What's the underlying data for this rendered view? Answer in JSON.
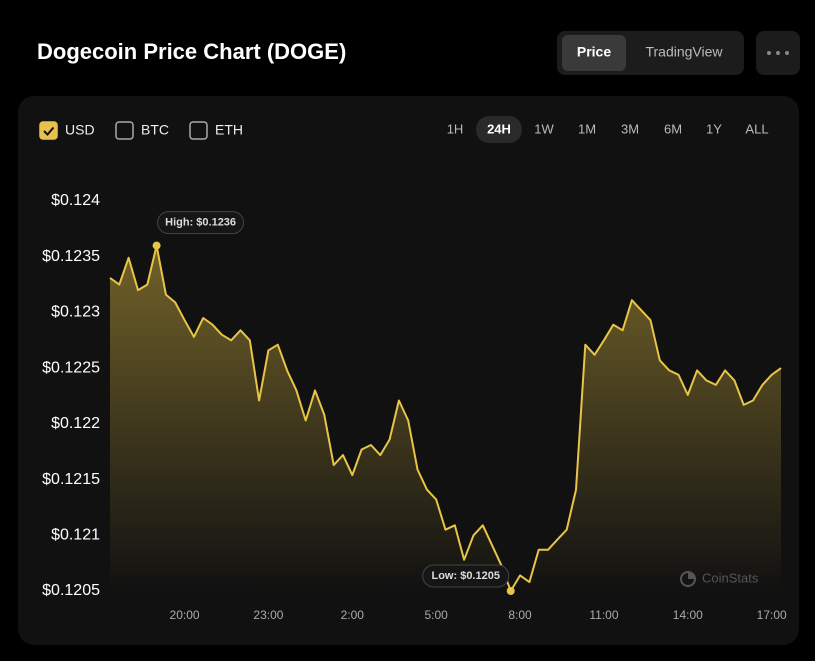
{
  "chart_data": {
    "type": "line",
    "title": "Dogecoin Price Chart (DOGE)",
    "x": [
      "17:20",
      "17:40",
      "18:00",
      "18:20",
      "18:40",
      "19:00",
      "19:20",
      "19:40",
      "20:00",
      "20:20",
      "20:40",
      "21:00",
      "21:20",
      "21:40",
      "22:00",
      "22:20",
      "22:40",
      "23:00",
      "23:20",
      "23:40",
      "00:00",
      "00:20",
      "00:40",
      "01:00",
      "01:20",
      "01:40",
      "02:00",
      "02:20",
      "02:40",
      "03:00",
      "03:20",
      "03:40",
      "04:00",
      "04:20",
      "04:40",
      "05:00",
      "05:20",
      "05:40",
      "06:00",
      "06:20",
      "06:40",
      "07:00",
      "07:20",
      "07:40",
      "08:00",
      "08:20",
      "08:40",
      "09:00",
      "09:20",
      "09:40",
      "10:00",
      "10:20",
      "10:40",
      "11:00",
      "11:20",
      "11:40",
      "12:00",
      "12:20",
      "12:40",
      "13:00",
      "13:20",
      "13:40",
      "14:00",
      "14:20",
      "14:40",
      "15:00",
      "15:20",
      "15:40",
      "16:00",
      "16:20",
      "16:40",
      "17:00",
      "17:20"
    ],
    "series": [
      {
        "name": "USD",
        "color": "#e8c547",
        "values": [
          0.12331,
          0.12325,
          0.12349,
          0.1232,
          0.12325,
          0.1236,
          0.12316,
          0.12309,
          0.12293,
          0.12278,
          0.12295,
          0.12289,
          0.1228,
          0.12275,
          0.12284,
          0.12275,
          0.12221,
          0.12266,
          0.12271,
          0.12248,
          0.1223,
          0.12203,
          0.1223,
          0.12208,
          0.12163,
          0.12172,
          0.12154,
          0.12177,
          0.12181,
          0.12172,
          0.12186,
          0.12221,
          0.12203,
          0.12159,
          0.12141,
          0.12132,
          0.12105,
          0.12109,
          0.12078,
          0.121,
          0.12109,
          0.12091,
          0.12073,
          0.1205,
          0.12064,
          0.12058,
          0.12087,
          0.12087,
          0.12096,
          0.12105,
          0.12141,
          0.12271,
          0.12262,
          0.12275,
          0.12289,
          0.12284,
          0.12311,
          0.12302,
          0.12293,
          0.12257,
          0.12248,
          0.12244,
          0.12226,
          0.12248,
          0.12239,
          0.12235,
          0.12248,
          0.12239,
          0.12217,
          0.12221,
          0.12235,
          0.12244,
          0.1225
        ]
      }
    ],
    "ylim": [
      0.1205,
      0.124
    ],
    "yticks": [
      {
        "value": 0.1205,
        "label": "$0.1205"
      },
      {
        "value": 0.121,
        "label": "$0.121"
      },
      {
        "value": 0.1215,
        "label": "$0.1215"
      },
      {
        "value": 0.122,
        "label": "$0.122"
      },
      {
        "value": 0.1225,
        "label": "$0.1225"
      },
      {
        "value": 0.123,
        "label": "$0.123"
      },
      {
        "value": 0.1235,
        "label": "$0.1235"
      },
      {
        "value": 0.124,
        "label": "$0.124"
      }
    ],
    "xticks": [
      "20:00",
      "23:00",
      "02:00",
      "05:00",
      "08:00",
      "11:00",
      "14:00",
      "17:00"
    ],
    "xtick_labels": [
      "20:00",
      "23:00",
      "2:00",
      "5:00",
      "8:00",
      "11:00",
      "14:00",
      "17:00"
    ],
    "annotations": [
      {
        "label": "High: $0.1236",
        "x": "19:00",
        "value": 0.1236
      },
      {
        "label": "Low: $0.1205",
        "x": "07:40",
        "value": 0.1205
      }
    ],
    "grid": false
  },
  "tabs": [
    {
      "label": "Price",
      "active": true
    },
    {
      "label": "TradingView",
      "active": false
    }
  ],
  "currencies": [
    {
      "label": "USD",
      "checked": true
    },
    {
      "label": "BTC",
      "checked": false
    },
    {
      "label": "ETH",
      "checked": false
    }
  ],
  "ranges": [
    {
      "label": "1H",
      "active": false
    },
    {
      "label": "24H",
      "active": true
    },
    {
      "label": "1W",
      "active": false
    },
    {
      "label": "1M",
      "active": false
    },
    {
      "label": "3M",
      "active": false
    },
    {
      "label": "6M",
      "active": false
    },
    {
      "label": "1Y",
      "active": false
    },
    {
      "label": "ALL",
      "active": false
    }
  ],
  "watermark": "CoinStats"
}
